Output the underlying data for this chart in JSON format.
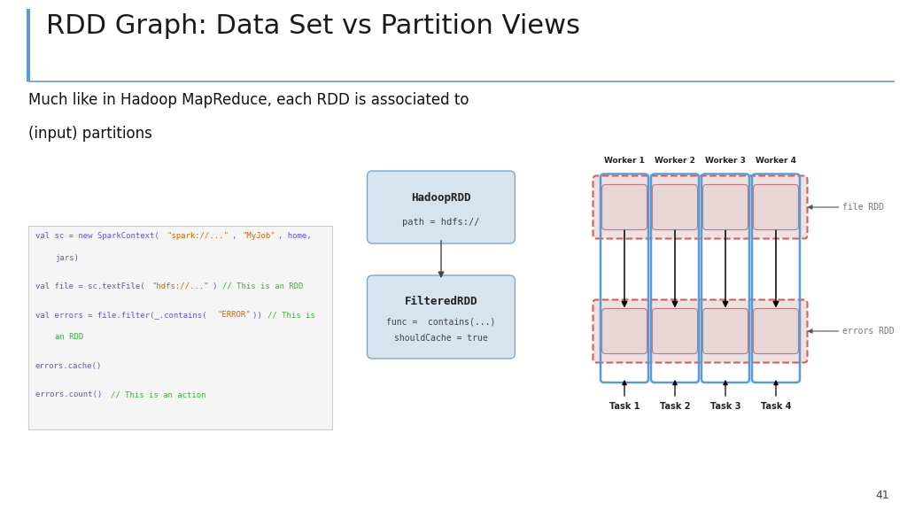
{
  "title": "RDD Graph: Data Set vs Partition Views",
  "subtitle_line1": "Much like in Hadoop MapReduce, each RDD is associated to",
  "subtitle_line2": "(input) partitions",
  "bg_color": "#ffffff",
  "title_color": "#1a1a1a",
  "accent_line_color": "#5b9bd5",
  "dag_node1_label": "HadoopRDD",
  "dag_node1_sublabel": "path = hdfs://",
  "dag_node2_label": "FilteredRDD",
  "dag_node2_sub1": "func =  contains(...)",
  "dag_node2_sub2": "shouldCache = true",
  "node_fill": "#d6e4f0",
  "node_border": "#7fa8c9",
  "worker_labels": [
    "Worker 1",
    "Worker 2",
    "Worker 3",
    "Worker 4"
  ],
  "task_labels": [
    "Task 1",
    "Task 2",
    "Task 3",
    "Task 4"
  ],
  "file_rdd_label": "file RDD",
  "errors_rdd_label": "errors RDD",
  "partition_fill": "#e8d5d5",
  "partition_border": "#b08080",
  "worker_border_color": "#5b9bd5",
  "rdd_group_border_color": "#d06060",
  "page_number": "41",
  "code_bg": "#f5f5f5",
  "code_border": "#cccccc"
}
